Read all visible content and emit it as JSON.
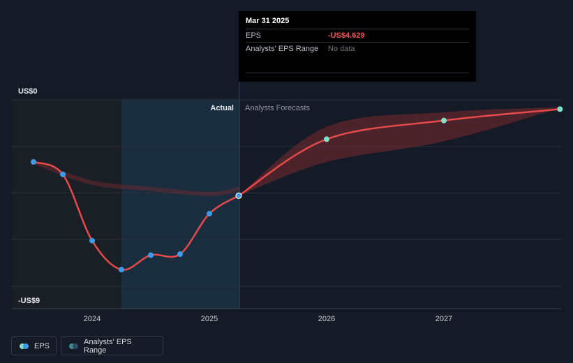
{
  "tooltip": {
    "date": "Mar 31 2025",
    "eps_label": "EPS",
    "eps_value": "-US$4.629",
    "range_label": "Analysts' EPS Range",
    "range_value": "No data"
  },
  "legend": {
    "eps_label": "EPS",
    "range_label": "Analysts' EPS Range"
  },
  "colors": {
    "background": "#151b26",
    "eps_line": "#e84a4a",
    "range_fill": "#7a2a30",
    "eps_dot": "#3d9be9",
    "forecast_dot": "#7ee0c4",
    "actual_shade": "#1d3a50",
    "past_shade": "#1a1f26"
  },
  "chart_data": {
    "type": "line",
    "y_top_label": "US$0",
    "y_bottom_label": "-US$9",
    "ylim": [
      -9,
      0
    ],
    "x_ticks": [
      {
        "label": "2024",
        "x": 2024.0
      },
      {
        "label": "2025",
        "x": 2025.0
      },
      {
        "label": "2026",
        "x": 2026.0
      },
      {
        "label": "2027",
        "x": 2027.0
      }
    ],
    "actual_label": "Actual",
    "forecast_label": "Analysts Forecasts",
    "actual_start": 2024.25,
    "actual_end": 2025.25,
    "eps_actual": [
      {
        "x": 2023.5,
        "y": -3.0
      },
      {
        "x": 2023.75,
        "y": -3.6
      },
      {
        "x": 2024.0,
        "y": -6.8
      },
      {
        "x": 2024.25,
        "y": -8.2
      },
      {
        "x": 2024.5,
        "y": -7.5
      },
      {
        "x": 2024.75,
        "y": -7.45
      },
      {
        "x": 2025.0,
        "y": -5.5
      },
      {
        "x": 2025.25,
        "y": -4.629
      }
    ],
    "eps_forecast": [
      {
        "x": 2025.25,
        "y": -4.629
      },
      {
        "x": 2026.0,
        "y": -1.9
      },
      {
        "x": 2027.0,
        "y": -1.0
      },
      {
        "x": 2027.99,
        "y": -0.45
      }
    ],
    "range_forecast": [
      {
        "x": 2025.25,
        "low": -4.629,
        "high": -4.629
      },
      {
        "x": 2026.0,
        "low": -3.0,
        "high": -1.3
      },
      {
        "x": 2027.0,
        "low": -2.0,
        "high": -0.6
      },
      {
        "x": 2027.99,
        "low": -0.4,
        "high": -0.35
      }
    ],
    "range_past": [
      {
        "x": 2023.5,
        "y": -3.0
      },
      {
        "x": 2024.0,
        "y": -4.0
      },
      {
        "x": 2024.5,
        "y": -4.3
      },
      {
        "x": 2025.0,
        "y": -4.55
      },
      {
        "x": 2025.25,
        "y": -4.3
      }
    ]
  }
}
